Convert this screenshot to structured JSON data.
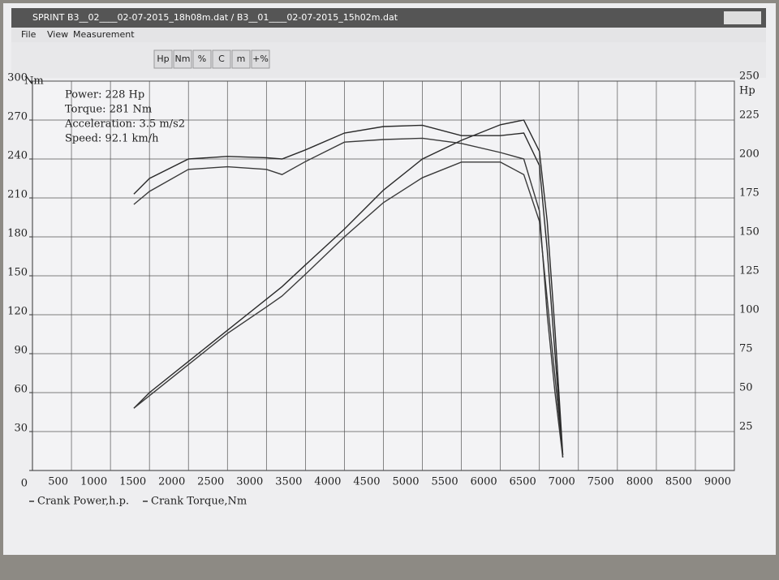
{
  "window": {
    "title": "SPRINT B3__02____02-07-2015_18h08m.dat / B3__01____02-07-2015_15h02m.dat",
    "menu": [
      "File",
      "View",
      "Measurement"
    ],
    "toolbar": [
      "Hp",
      "Nm",
      "%",
      "C",
      "m",
      "+%"
    ]
  },
  "chart_data": {
    "type": "line",
    "y_unit": "Nm",
    "y2_unit": "Hp",
    "annotations": [
      "Power: 228 Hp",
      "Torque: 281 Nm",
      "Acceleration: 3.5 m/s2",
      "Speed: 92.1 km/h"
    ],
    "x": [
      1300,
      1500,
      2000,
      2500,
      3000,
      3200,
      3500,
      4000,
      4500,
      5000,
      5500,
      6000,
      6300,
      6500,
      6600,
      6700,
      6800
    ],
    "series": [
      {
        "name": "Crank Power,h.p.",
        "color": "#2a2a2a",
        "axis": "y2",
        "values": [
          40,
          50,
          70,
          90,
          110,
          118,
          132,
          155,
          180,
          200,
          212,
          222,
          225,
          205,
          160,
          90,
          10
        ]
      },
      {
        "color": "#3a3a3a",
        "axis": "y2",
        "values": [
          40,
          48,
          68,
          88,
          105,
          112,
          126,
          150,
          172,
          188,
          198,
          198,
          190,
          160,
          110,
          60,
          10
        ]
      },
      {
        "name": "Crank Torque,Nm",
        "color": "#2a2a2a",
        "values": [
          213,
          225,
          240,
          242,
          241,
          240,
          247,
          260,
          265,
          266,
          258,
          258,
          260,
          235,
          170,
          90,
          10
        ]
      },
      {
        "color": "#3a3a3a",
        "values": [
          205,
          215,
          232,
          234,
          232,
          228,
          238,
          253,
          255,
          256,
          252,
          245,
          240,
          200,
          120,
          60,
          10
        ]
      }
    ],
    "xlim": [
      0,
      9000
    ],
    "xticks": [
      500,
      1000,
      1500,
      2000,
      2500,
      3000,
      3500,
      4000,
      4500,
      5000,
      5500,
      6000,
      6500,
      7000,
      7500,
      8000,
      8500,
      9000
    ],
    "ylim": [
      0,
      300
    ],
    "yticks": [
      0,
      30,
      60,
      90,
      120,
      150,
      180,
      210,
      240,
      270,
      300
    ],
    "y2lim": [
      0,
      250
    ],
    "y2ticks": [
      25,
      50,
      75,
      100,
      125,
      150,
      175,
      200,
      225,
      250
    ],
    "grid": true
  }
}
